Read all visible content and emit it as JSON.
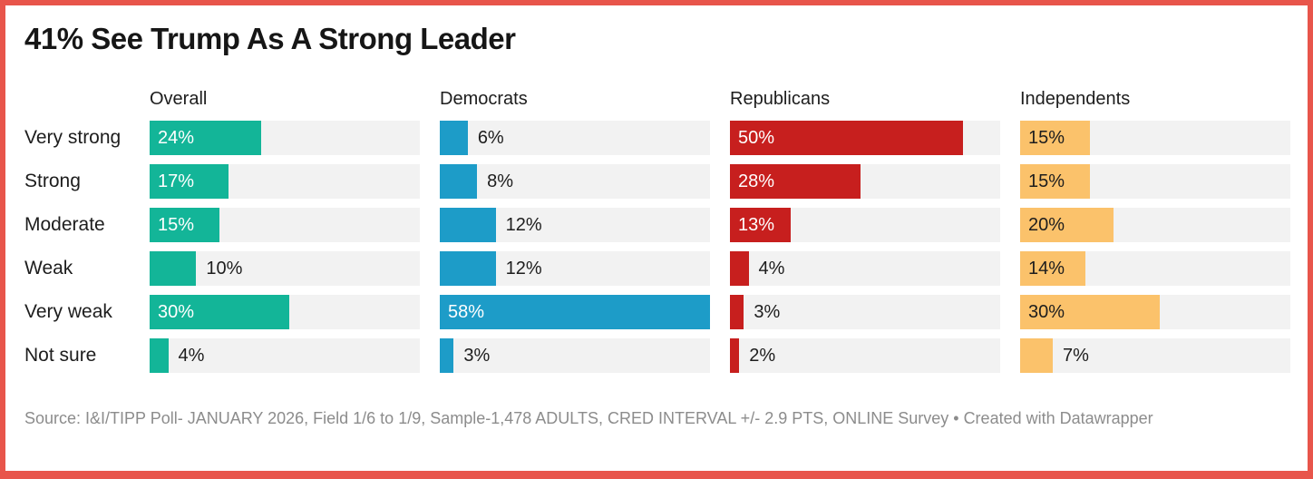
{
  "title": "41% See Trump As A Strong Leader",
  "source_line": "Source: I&I/TIPP Poll- JANUARY 2026, Field 1/6 to 1/9, Sample-1,478 ADULTS, CRED INTERVAL +/- 2.9 PTS, ONLINE Survey • Created with Datawrapper",
  "frame": {
    "border_color": "#e8554b",
    "background_color": "#ffffff"
  },
  "chart_data": {
    "type": "bar",
    "orientation": "horizontal",
    "title": "41% See Trump As A Strong Leader",
    "categories": [
      "Very strong",
      "Strong",
      "Moderate",
      "Weak",
      "Very weak",
      "Not sure"
    ],
    "series": [
      {
        "name": "Overall",
        "color": "#13b598",
        "inside_label_color": "#ffffff",
        "values": [
          24,
          17,
          15,
          10,
          30,
          4
        ]
      },
      {
        "name": "Democrats",
        "color": "#1d9cc8",
        "inside_label_color": "#ffffff",
        "values": [
          6,
          8,
          12,
          12,
          58,
          3
        ]
      },
      {
        "name": "Republicans",
        "color": "#c71f1e",
        "inside_label_color": "#ffffff",
        "values": [
          50,
          28,
          13,
          4,
          3,
          2
        ]
      },
      {
        "name": "Independents",
        "color": "#fbc26b",
        "inside_label_color": "#1d1d1d",
        "values": [
          15,
          15,
          20,
          14,
          30,
          7
        ]
      }
    ],
    "value_suffix": "%",
    "scale_max": 58,
    "grid": false,
    "legend": "column-headers",
    "track_color": "#f2f2f2",
    "outside_label_color": "#1d1d1d"
  }
}
